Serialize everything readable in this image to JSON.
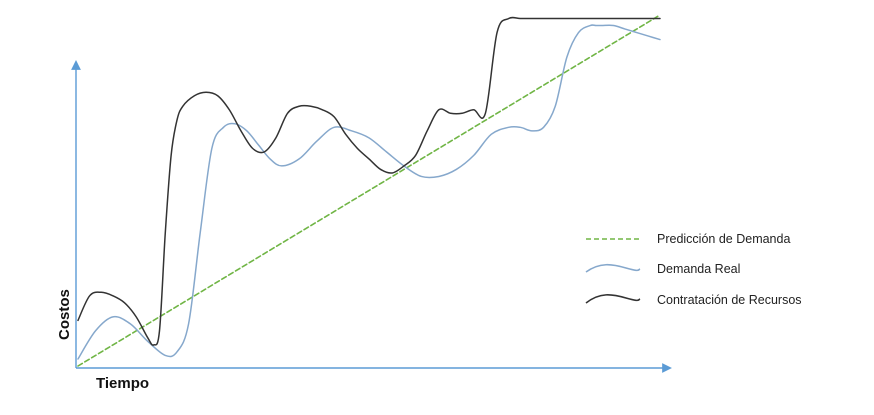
{
  "chart_data": {
    "type": "line",
    "title": "",
    "xlabel": "Tiempo",
    "ylabel": "Costos",
    "xlim": [
      0,
      100
    ],
    "ylim": [
      0,
      100
    ],
    "grid": false,
    "axis_ticks": false,
    "legend_position": "right",
    "colors": {
      "axis": "#5b9bd5",
      "prediction": "#70b545",
      "real": "#86a8cc",
      "resources": "#333333"
    },
    "series": [
      {
        "name": "Predicción de Demanda",
        "style": "dashed",
        "color": "#70b545",
        "x": [
          0,
          100
        ],
        "y": [
          0,
          100
        ]
      },
      {
        "name": "Demanda Real",
        "style": "solid",
        "color": "#86a8cc",
        "x": [
          0,
          3,
          6,
          9,
          12,
          15,
          17,
          19,
          21,
          23,
          25,
          27,
          29,
          31,
          33,
          35,
          38,
          41,
          44,
          47,
          50,
          53,
          56,
          59,
          62,
          65,
          68,
          71,
          74,
          76,
          78,
          80,
          82,
          84,
          86,
          88,
          89,
          90,
          92,
          94,
          96,
          98,
          100
        ],
        "y": [
          2,
          10,
          14,
          12,
          7,
          3,
          4,
          12,
          38,
          62,
          68,
          69,
          67,
          63,
          59,
          57,
          59,
          64,
          68,
          67,
          65,
          61,
          57,
          54,
          54,
          56,
          60,
          66,
          68,
          68,
          67,
          68,
          74,
          88,
          95,
          97,
          97,
          97,
          97,
          96,
          95,
          94,
          93
        ]
      },
      {
        "name": "Contratación de Recursos",
        "style": "solid",
        "color": "#333333",
        "x": [
          0,
          2,
          4,
          6,
          8,
          10,
          12,
          13,
          14,
          15,
          16,
          17,
          18,
          20,
          22,
          24,
          26,
          28,
          30,
          32,
          34,
          36,
          38,
          40,
          42,
          44,
          46,
          48,
          50,
          52,
          54,
          56,
          58,
          60,
          62,
          64,
          66,
          68,
          70,
          72,
          74,
          76,
          78,
          80,
          82,
          83,
          84,
          85,
          86,
          88,
          90,
          92,
          94,
          96,
          98,
          100
        ],
        "y": [
          13,
          20,
          21,
          20,
          18,
          14,
          8,
          6,
          10,
          38,
          60,
          70,
          74,
          77,
          78,
          77,
          73,
          67,
          62,
          61,
          65,
          72,
          74,
          74,
          73,
          71,
          66,
          62,
          59,
          56,
          55,
          57,
          60,
          67,
          73,
          72,
          72,
          73,
          72,
          95,
          99,
          99,
          99,
          99,
          99,
          99,
          99,
          99,
          99,
          99,
          99,
          99,
          99,
          99,
          99,
          99
        ]
      }
    ]
  }
}
